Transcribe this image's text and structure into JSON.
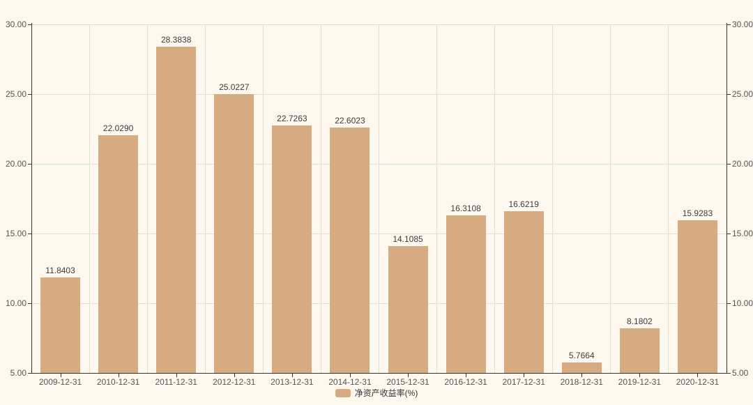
{
  "colors": {
    "background": "#fef8ef",
    "bar": "#d7ab82",
    "axis_line": "#333333",
    "grid_line": "#e1ded2",
    "axis_label": "#555555",
    "value_label": "#3c3c3c",
    "legend_text": "#333333"
  },
  "legend": {
    "label": "净资产收益率(%)"
  },
  "chart_data": {
    "type": "bar",
    "title": "",
    "xlabel": "",
    "ylabel": "",
    "series_name": "净资产收益率(%)",
    "categories": [
      "2009-12-31",
      "2010-12-31",
      "2011-12-31",
      "2012-12-31",
      "2013-12-31",
      "2014-12-31",
      "2015-12-31",
      "2016-12-31",
      "2017-12-31",
      "2018-12-31",
      "2019-12-31",
      "2020-12-31"
    ],
    "values": [
      11.8403,
      22.029,
      28.3838,
      25.0227,
      22.7263,
      22.6023,
      14.1085,
      16.3108,
      16.6219,
      5.7664,
      8.1802,
      15.9283
    ],
    "value_labels": [
      "11.8403",
      "22.0290",
      "28.3838",
      "25.0227",
      "22.7263",
      "22.6023",
      "14.1085",
      "16.3108",
      "16.6219",
      "5.7664",
      "8.1802",
      "15.9283"
    ],
    "ylim": [
      5,
      30
    ],
    "ytick_step": 5,
    "ytick_labels": [
      "5.00",
      "10.00",
      "15.00",
      "20.00",
      "25.00",
      "30.00"
    ],
    "grid": true,
    "dual_y_axis": true,
    "legend_position": "bottom-center"
  }
}
